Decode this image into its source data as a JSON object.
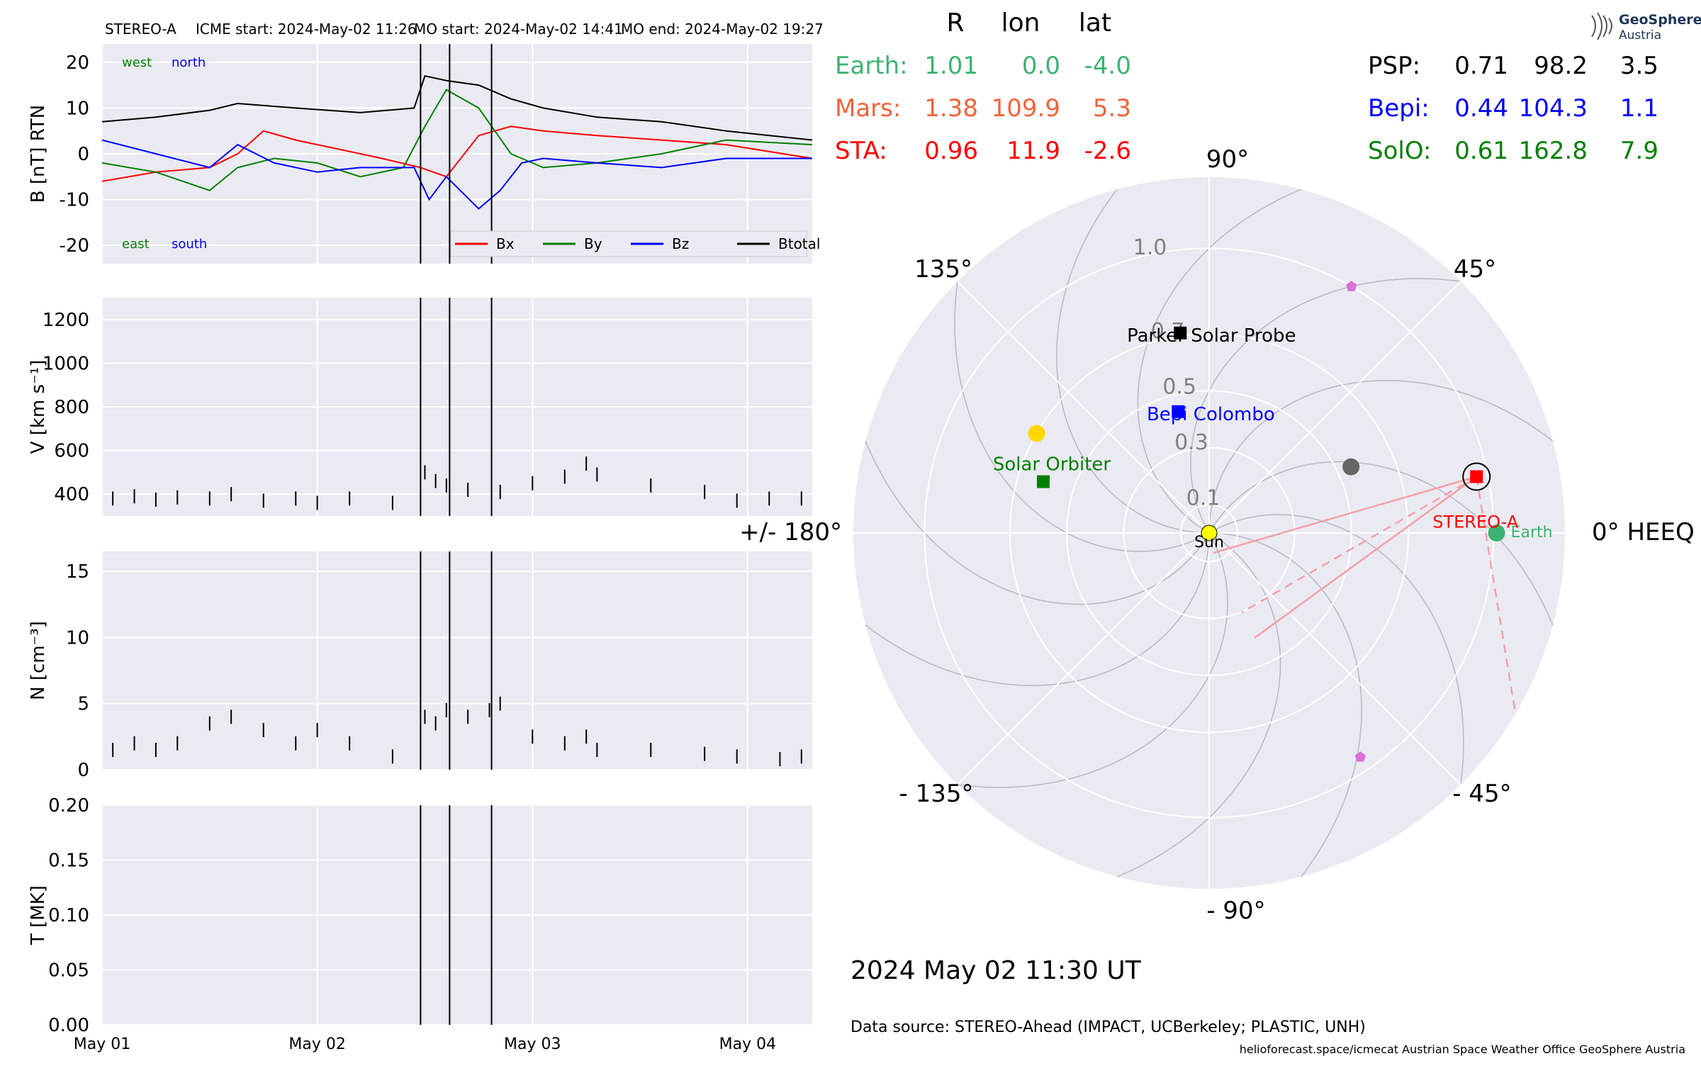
{
  "header": {
    "spacecraft": "STEREO-A",
    "icme_start": "ICME start: 2024-May-02 11:26",
    "mo_start": "MO start: 2024-May-02 14:41",
    "mo_end": "MO end: 2024-May-02 19:27"
  },
  "logo": {
    "line1": "GeoSphere",
    "line2": "Austria"
  },
  "table": {
    "col_r": "R",
    "col_lon": "lon",
    "col_lat": "lat",
    "left_rows": [
      {
        "name": "Earth:",
        "r": "1.01",
        "lon": "0.0",
        "lat": "-4.0",
        "color": "#3cb371"
      },
      {
        "name": "Mars:",
        "r": "1.38",
        "lon": "109.9",
        "lat": "5.3",
        "color": "#f4623a"
      },
      {
        "name": "STA:",
        "r": "0.96",
        "lon": "11.9",
        "lat": "-2.6",
        "color": "#ff0000"
      }
    ],
    "right_rows": [
      {
        "name": "PSP:",
        "r": "0.71",
        "lon": "98.2",
        "lat": "3.5",
        "color": "#000000"
      },
      {
        "name": "Bepi:",
        "r": "0.44",
        "lon": "104.3",
        "lat": "1.1",
        "color": "#0000ff"
      },
      {
        "name": "SolO:",
        "r": "0.61",
        "lon": "162.8",
        "lat": "7.9",
        "color": "#008000"
      }
    ]
  },
  "chart_data": [
    {
      "type": "line",
      "panel": "magnetic-field",
      "ylabel": "B [nT] RTN",
      "ylim": [
        -24,
        24
      ],
      "yticks": [
        -20,
        -10,
        0,
        10,
        20
      ],
      "xlim": [
        0,
        3.3
      ],
      "xticks": [
        0,
        1,
        2,
        3
      ],
      "xticklabels": [
        "May 01",
        "May 02",
        "May 03",
        "May 04"
      ],
      "corner_labels": {
        "west": "west",
        "north": "north",
        "east": "east",
        "south": "south"
      },
      "legend": [
        "Bx",
        "By",
        "Bz",
        "Btotal"
      ],
      "series": [
        {
          "name": "Btotal",
          "color": "#000000",
          "x": [
            0,
            0.25,
            0.5,
            0.63,
            0.9,
            1.2,
            1.45,
            1.5,
            1.6,
            1.75,
            1.9,
            2.05,
            2.3,
            2.6,
            2.9,
            3.3
          ],
          "y": [
            7,
            8,
            9.5,
            11,
            10,
            9,
            10,
            17,
            16,
            15,
            12,
            10,
            8,
            7,
            5,
            3
          ]
        },
        {
          "name": "Bx",
          "color": "#ff0000",
          "x": [
            0,
            0.25,
            0.5,
            0.63,
            0.75,
            0.9,
            1.1,
            1.3,
            1.48,
            1.6,
            1.75,
            1.9,
            2.05,
            2.3,
            2.6,
            2.9,
            3.3
          ],
          "y": [
            -6,
            -4,
            -3,
            0,
            5,
            3,
            1,
            -1,
            -3,
            -5,
            4,
            6,
            5,
            4,
            3,
            2,
            -1
          ]
        },
        {
          "name": "By",
          "color": "#008000",
          "x": [
            0,
            0.25,
            0.5,
            0.63,
            0.8,
            1.0,
            1.2,
            1.4,
            1.5,
            1.6,
            1.75,
            1.9,
            2.05,
            2.3,
            2.6,
            2.9,
            3.3
          ],
          "y": [
            -2,
            -4,
            -8,
            -3,
            -1,
            -2,
            -5,
            -3,
            6,
            14,
            10,
            0,
            -3,
            -2,
            0,
            3,
            2
          ]
        },
        {
          "name": "Bz",
          "color": "#0000ff",
          "x": [
            0,
            0.25,
            0.5,
            0.63,
            0.8,
            1.0,
            1.2,
            1.45,
            1.52,
            1.6,
            1.75,
            1.85,
            1.95,
            2.05,
            2.3,
            2.6,
            2.9,
            3.3
          ],
          "y": [
            3,
            0,
            -3,
            2,
            -2,
            -4,
            -3,
            -3,
            -10,
            -5,
            -12,
            -8,
            -2,
            -1,
            -2,
            -3,
            -1,
            -1
          ]
        }
      ]
    },
    {
      "type": "scatter",
      "panel": "speed",
      "ylabel": "V [km s⁻¹]",
      "ylim": [
        300,
        1300
      ],
      "yticks": [
        400,
        600,
        800,
        1000,
        1200
      ],
      "xlim": [
        0,
        3.3
      ],
      "x": [
        0.05,
        0.15,
        0.25,
        0.35,
        0.5,
        0.6,
        0.75,
        0.9,
        1.0,
        1.15,
        1.35,
        1.5,
        1.55,
        1.6,
        1.7,
        1.85,
        2.0,
        2.15,
        2.25,
        2.3,
        2.55,
        2.8,
        2.95,
        3.1,
        3.25
      ],
      "y": [
        380,
        390,
        375,
        385,
        380,
        400,
        370,
        380,
        360,
        380,
        360,
        500,
        460,
        440,
        420,
        410,
        450,
        480,
        540,
        490,
        440,
        410,
        370,
        380,
        380
      ]
    },
    {
      "type": "scatter",
      "panel": "density",
      "ylabel": "N [cm⁻³]",
      "ylim": [
        0,
        16.5
      ],
      "yticks": [
        0,
        5,
        10,
        15
      ],
      "xlim": [
        0,
        3.3
      ],
      "x": [
        0.05,
        0.15,
        0.25,
        0.35,
        0.5,
        0.6,
        0.75,
        0.9,
        1.0,
        1.15,
        1.35,
        1.5,
        1.55,
        1.6,
        1.7,
        1.8,
        1.85,
        2.0,
        2.15,
        2.25,
        2.3,
        2.55,
        2.8,
        2.95,
        3.15,
        3.25
      ],
      "y": [
        1.5,
        2,
        1.5,
        2,
        3.5,
        4,
        3,
        2,
        3,
        2,
        1,
        4,
        3.5,
        4.5,
        4,
        4.5,
        5,
        2.5,
        2,
        2.5,
        1.5,
        1.5,
        1.2,
        1,
        0.8,
        1
      ]
    },
    {
      "type": "line",
      "panel": "temperature",
      "ylabel": "T [MK]",
      "ylim": [
        0,
        0.2
      ],
      "yticks": [
        0.0,
        0.05,
        0.1,
        0.15,
        0.2
      ],
      "yticklabels": [
        "0.00",
        "0.05",
        "0.10",
        "0.15",
        "0.20"
      ],
      "xlim": [
        0,
        3.3
      ],
      "xticks": [
        0,
        1,
        2,
        3
      ],
      "xticklabels": [
        "May 01",
        "May 02",
        "May 03",
        "May 04"
      ],
      "series": []
    },
    {
      "type": "scatter",
      "panel": "polar-orbit-map",
      "coordinate_system": "HEEQ",
      "radial_ticks": [
        "0.1",
        "0.3",
        "0.5",
        "0.7",
        "1.0"
      ],
      "radial_tick_values": [
        0.1,
        0.3,
        0.5,
        0.7,
        1.0
      ],
      "angle_labels": {
        "a0": "0° HEEQ",
        "a45": "45°",
        "a90": "90°",
        "a135": "135°",
        "a180": "+/- 180°",
        "am135": "- 135°",
        "am90": "- 90°",
        "am45": "- 45°"
      },
      "bodies": [
        {
          "name": "Sun",
          "r": 0.0,
          "lon": 0,
          "color": "#ffff00",
          "marker": "circle"
        },
        {
          "name": "Earth",
          "r": 1.01,
          "lon": 0.0,
          "color": "#3cb371",
          "marker": "circle"
        },
        {
          "name": "STEREO-A",
          "r": 0.96,
          "lon": 11.9,
          "color": "#ff0000",
          "marker": "square"
        },
        {
          "name": "Parker Solar Probe",
          "r": 0.71,
          "lon": 98.2,
          "color": "#000000",
          "marker": "square"
        },
        {
          "name": "Bepi Colombo",
          "r": 0.44,
          "lon": 104.3,
          "color": "#0000ff",
          "marker": "square"
        },
        {
          "name": "Solar Orbiter",
          "r": 0.61,
          "lon": 162.8,
          "color": "#008000",
          "marker": "square"
        },
        {
          "name": "",
          "r": 0.7,
          "lon": 150,
          "color": "#ffd700",
          "marker": "circle"
        },
        {
          "name": "",
          "r": 0.55,
          "lon": 25,
          "color": "#666666",
          "marker": "circle"
        },
        {
          "name": "",
          "r": 1.0,
          "lon": 60,
          "color": "#da70d6",
          "marker": "pentagon"
        },
        {
          "name": "",
          "r": 0.95,
          "lon": -56,
          "color": "#da70d6",
          "marker": "pentagon"
        }
      ]
    }
  ],
  "footer": {
    "datetime": "2024 May 02  11:30 UT",
    "source": "Data source: STEREO-Ahead (IMPACT, UCBerkeley; PLASTIC, UNH)",
    "credits": "helioforecast.space/icmecat   Austrian Space Weather Office   GeoSphere Austria"
  }
}
